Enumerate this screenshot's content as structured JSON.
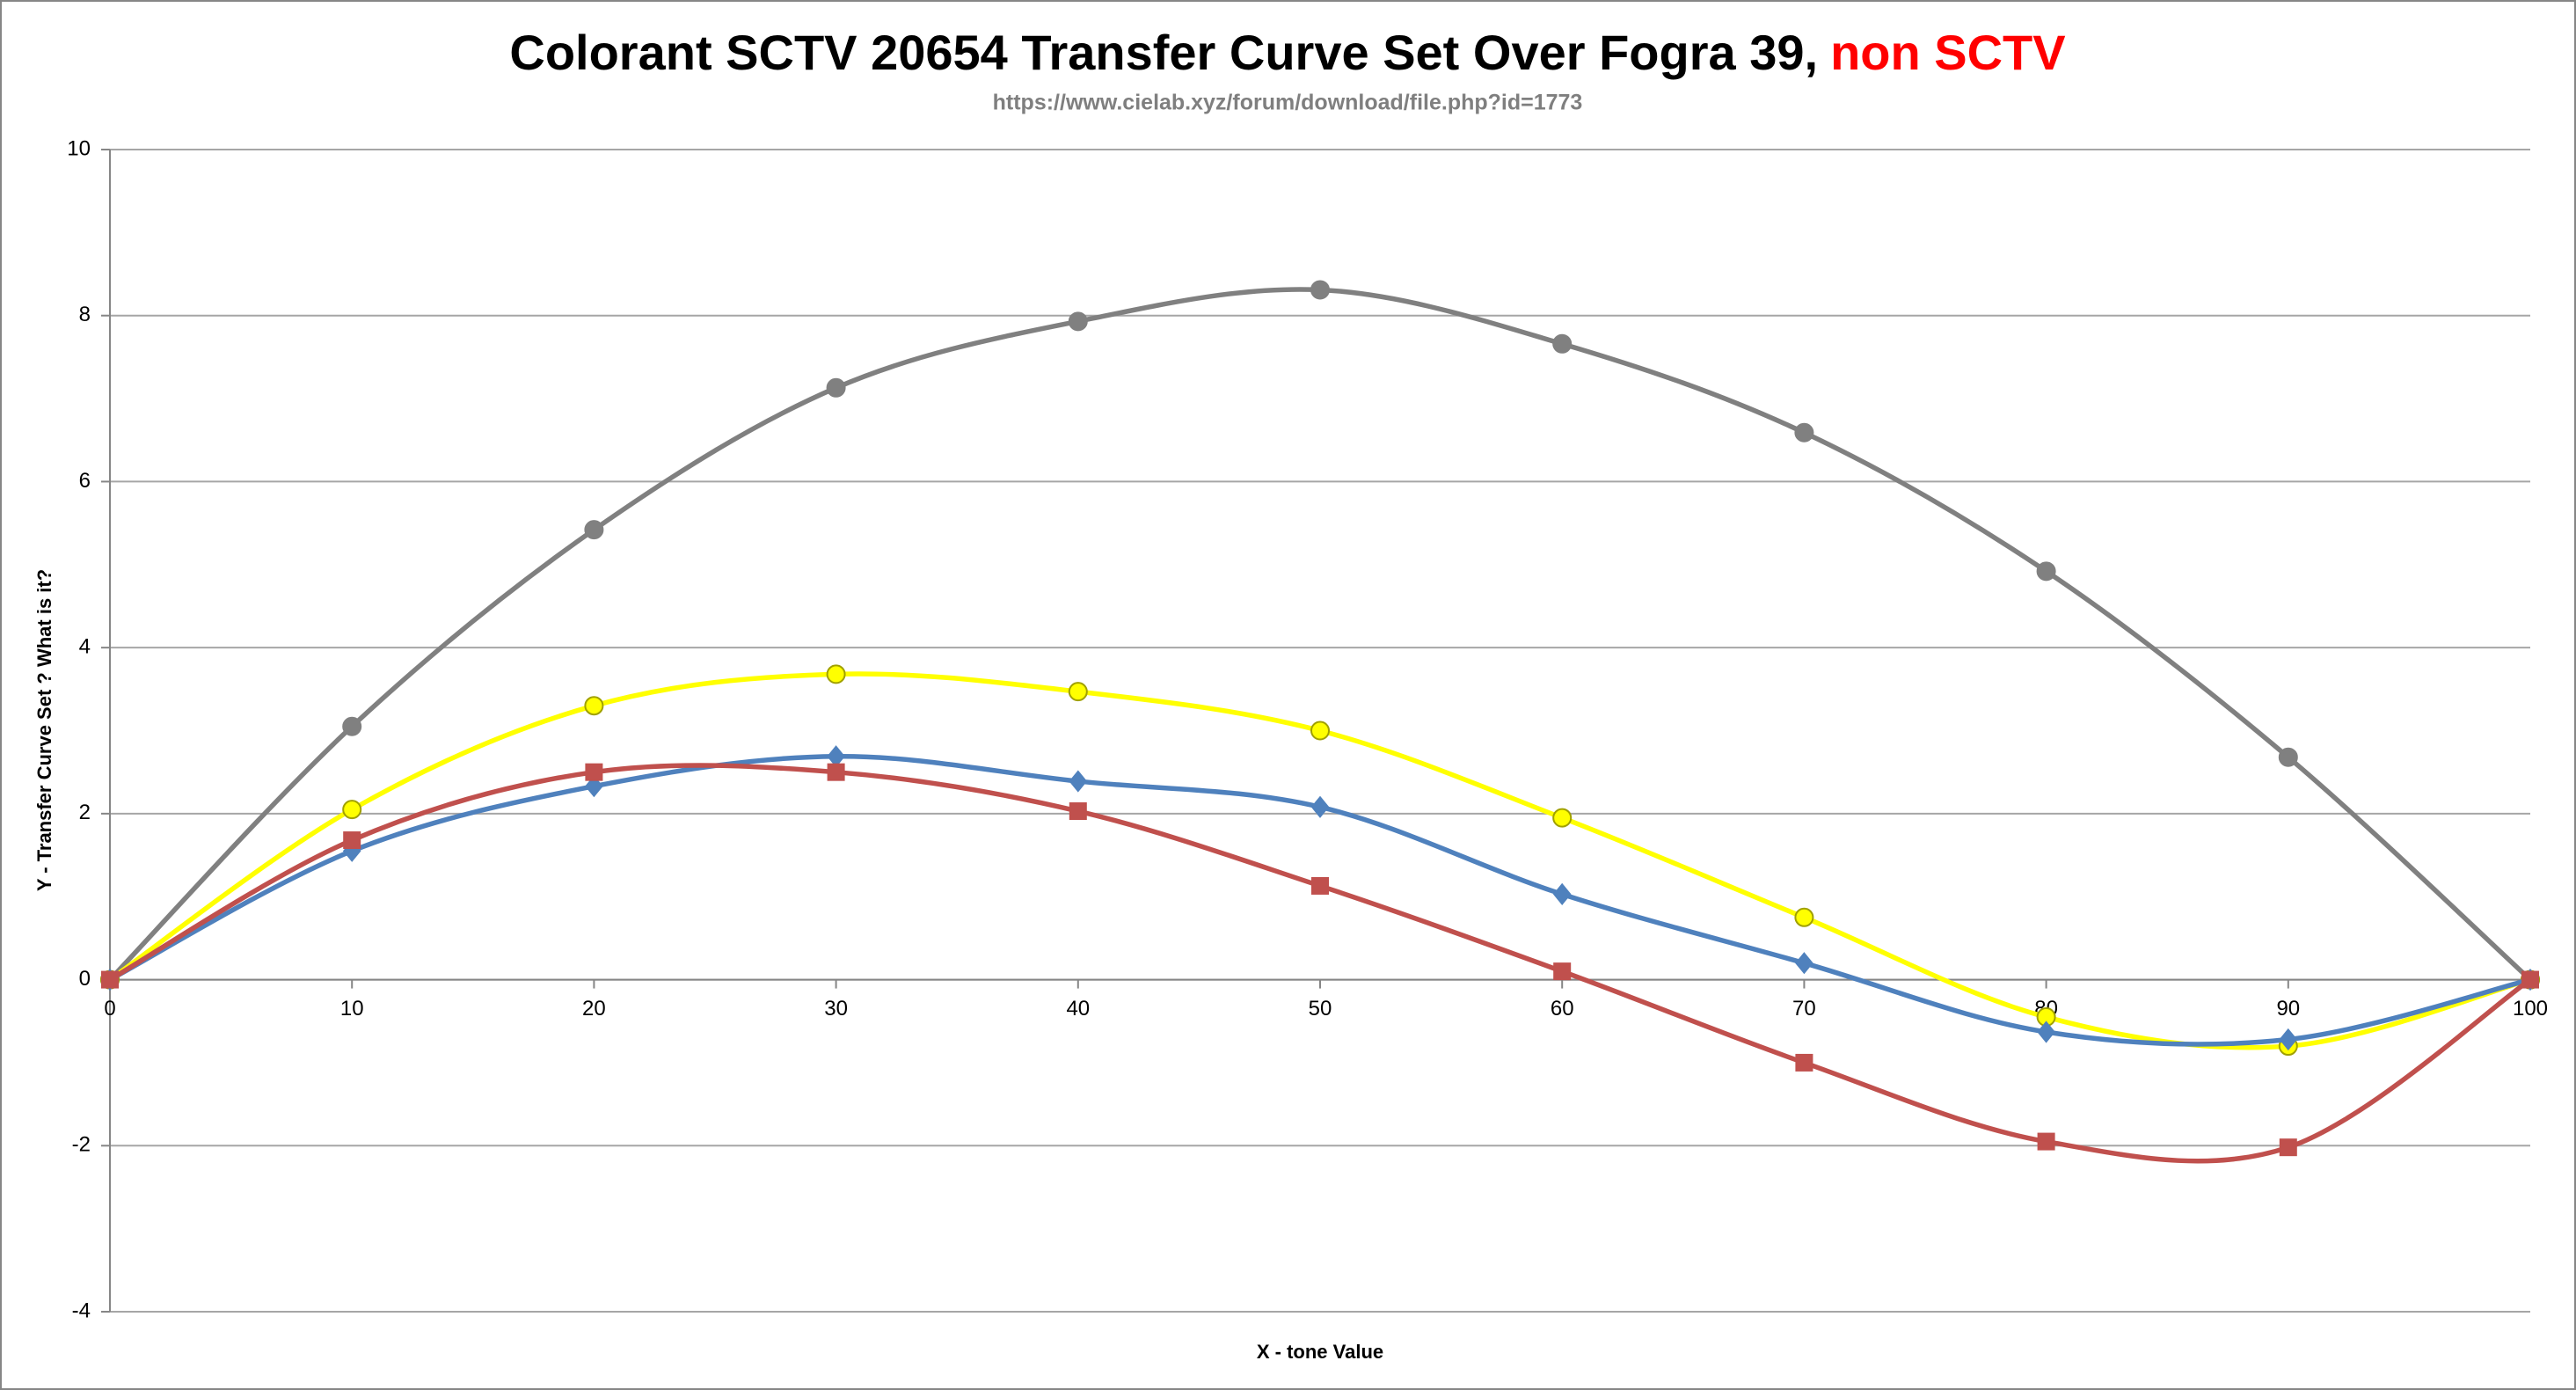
{
  "chart_data": {
    "type": "line",
    "title": "Colorant SCTV 20654 Transfer Curve Set Over Fogra 39,",
    "title_highlight": "non SCTV",
    "title_highlight_color": "#ff0000",
    "subtitle": "https://www.cielab.xyz/forum/download/file.php?id=1773",
    "x_label": "X - tone Value",
    "y_label": "Y - Transfer Curve Set ?   What is it?",
    "x": [
      0,
      10,
      20,
      30,
      40,
      50,
      60,
      70,
      80,
      90,
      100
    ],
    "xlim": [
      0,
      100
    ],
    "xticks": [
      0,
      10,
      20,
      30,
      40,
      50,
      60,
      70,
      80,
      90,
      100
    ],
    "ylim": [
      -4,
      10
    ],
    "yticks": [
      -4,
      -2,
      0,
      2,
      4,
      6,
      8,
      10
    ],
    "grid": true,
    "smooth": true,
    "series": [
      {
        "color": "#808080",
        "marker": "circle",
        "values": [
          0,
          3.05,
          5.42,
          7.13,
          7.93,
          8.31,
          7.66,
          6.59,
          4.92,
          2.68,
          0
        ]
      },
      {
        "color": "#ffff00",
        "marker": "circle",
        "values": [
          0,
          2.05,
          3.3,
          3.68,
          3.47,
          3.0,
          1.95,
          0.75,
          -0.45,
          -0.8,
          0
        ]
      },
      {
        "color": "#4f81bd",
        "marker": "diamond",
        "values": [
          0,
          1.55,
          2.33,
          2.69,
          2.39,
          2.08,
          1.03,
          0.2,
          -0.63,
          -0.72,
          0
        ]
      },
      {
        "color": "#c0504d",
        "marker": "square",
        "values": [
          0,
          1.68,
          2.5,
          2.5,
          2.03,
          1.13,
          0.1,
          -1.0,
          -1.95,
          -2.02,
          0
        ]
      }
    ]
  }
}
